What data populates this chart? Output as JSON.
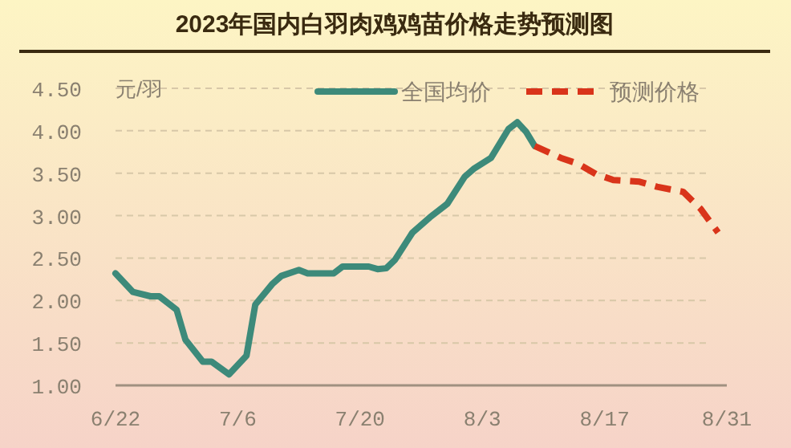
{
  "chart_data": {
    "type": "line",
    "title": "2023年国内白羽肉鸡鸡苗价格走势预测图",
    "ylabel": "元/羽",
    "xlim": [
      "--06-22",
      "--08-31"
    ],
    "xticks": [
      {
        "value": "--06-22",
        "label": "6/22"
      },
      {
        "value": "--07-06",
        "label": "7/6"
      },
      {
        "value": "--07-20",
        "label": "7/20"
      },
      {
        "value": "--08-03",
        "label": "8/3"
      },
      {
        "value": "--08-17",
        "label": "8/17"
      },
      {
        "value": "--08-31",
        "label": "8/31"
      }
    ],
    "ylim": [
      1,
      4.5
    ],
    "yticks": [
      {
        "value": 1,
        "label": "1.00"
      },
      {
        "value": 1.5,
        "label": "1.50"
      },
      {
        "value": 2,
        "label": "2.00"
      },
      {
        "value": 2.5,
        "label": "2.50"
      },
      {
        "value": 3,
        "label": "3.00"
      },
      {
        "value": 3.5,
        "label": "3.50"
      },
      {
        "value": 4,
        "label": "4.00"
      },
      {
        "value": 4.5,
        "label": "4.50"
      }
    ],
    "grid": "y",
    "legend": "top right",
    "marker": "none",
    "series": [
      {
        "name": "全国均价",
        "color": "#3d8a7a",
        "line_style": "solid",
        "x": [
          "--06-22",
          "--06-24",
          "--06-26",
          "--06-27",
          "--06-29",
          "--06-30",
          "--07-02",
          "--07-03",
          "--07-05",
          "--07-07",
          "--07-08",
          "--07-10",
          "--07-11",
          "--07-13",
          "--07-14",
          "--07-17",
          "--07-18",
          "--07-21",
          "--07-22",
          "--07-23",
          "--07-24",
          "--07-26",
          "--07-28",
          "--07-30",
          "--08-01",
          "--08-02",
          "--08-04",
          "--08-06",
          "--08-07",
          "--08-08",
          "--08-09"
        ],
        "values": [
          2.32,
          2.1,
          2.05,
          2.05,
          1.89,
          1.54,
          1.28,
          1.28,
          1.13,
          1.35,
          1.95,
          2.2,
          2.29,
          2.36,
          2.32,
          2.32,
          2.4,
          2.4,
          2.37,
          2.38,
          2.48,
          2.8,
          2.98,
          3.14,
          3.46,
          3.55,
          3.68,
          4.02,
          4.1,
          3.99,
          3.82
        ]
      },
      {
        "name": "预测价格",
        "color": "#d9341a",
        "line_style": "dashed",
        "x": [
          "--08-09",
          "--08-12",
          "--08-14",
          "--08-16",
          "--08-18",
          "--08-21",
          "--08-23",
          "--08-26",
          "--08-28",
          "--08-30"
        ],
        "values": [
          3.82,
          3.68,
          3.61,
          3.49,
          3.42,
          3.4,
          3.34,
          3.28,
          3.08,
          2.8
        ]
      }
    ]
  }
}
